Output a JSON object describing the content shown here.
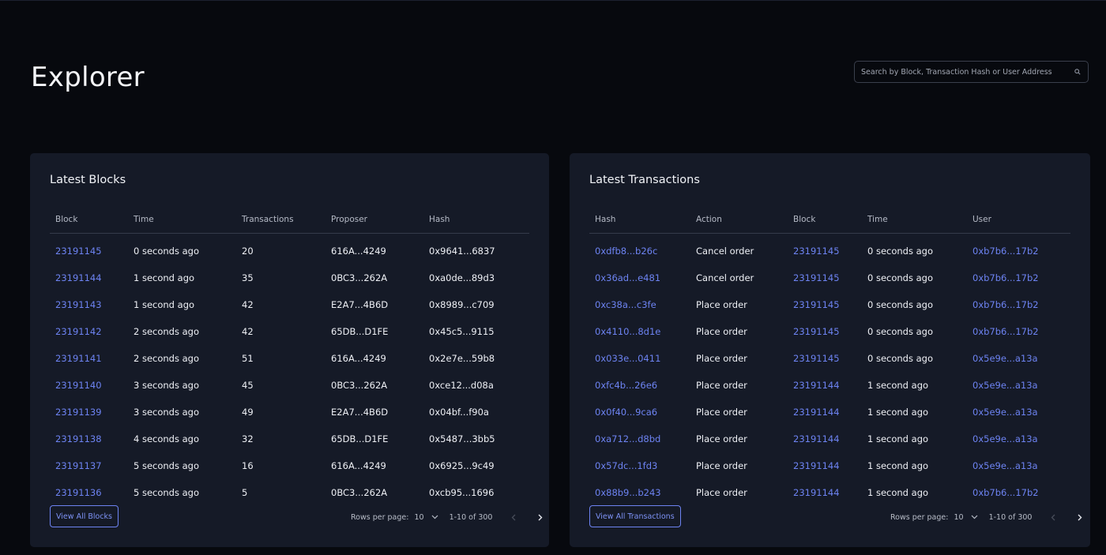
{
  "header": {
    "title": "Explorer",
    "search_placeholder": "Search by Block, Transaction Hash or User Address",
    "search_icon": "search-icon"
  },
  "colors": {
    "background": "#07090e",
    "panel": "#151a27",
    "accent_link": "#6d83f2",
    "text": "#eef0f5",
    "muted": "#b5bac6"
  },
  "blocks_panel": {
    "title": "Latest Blocks",
    "columns": [
      "Block",
      "Time",
      "Transactions",
      "Proposer",
      "Hash"
    ],
    "rows": [
      [
        "23191145",
        "0 seconds ago",
        "20",
        "616A...4249",
        "0x9641...6837"
      ],
      [
        "23191144",
        "1 second ago",
        "35",
        "0BC3...262A",
        "0xa0de...89d3"
      ],
      [
        "23191143",
        "1 second ago",
        "42",
        "E2A7...4B6D",
        "0x8989...c709"
      ],
      [
        "23191142",
        "2 seconds ago",
        "42",
        "65DB...D1FE",
        "0x45c5...9115"
      ],
      [
        "23191141",
        "2 seconds ago",
        "51",
        "616A...4249",
        "0x2e7e...59b8"
      ],
      [
        "23191140",
        "3 seconds ago",
        "45",
        "0BC3...262A",
        "0xce12...d08a"
      ],
      [
        "23191139",
        "3 seconds ago",
        "49",
        "E2A7...4B6D",
        "0x04bf...f90a"
      ],
      [
        "23191138",
        "4 seconds ago",
        "32",
        "65DB...D1FE",
        "0x5487...3bb5"
      ],
      [
        "23191137",
        "5 seconds ago",
        "16",
        "616A...4249",
        "0x6925...9c49"
      ],
      [
        "23191136",
        "5 seconds ago",
        "5",
        "0BC3...262A",
        "0xcb95...1696"
      ]
    ],
    "view_all_label": "View All Blocks",
    "pager": {
      "rows_per_page_label": "Rows per page:",
      "rows_per_page_value": "10",
      "range_label": "1-10 of 300"
    }
  },
  "transactions_panel": {
    "title": "Latest Transactions",
    "columns": [
      "Hash",
      "Action",
      "Block",
      "Time",
      "User"
    ],
    "rows": [
      [
        "0xdfb8...b26c",
        "Cancel order",
        "23191145",
        "0 seconds ago",
        "0xb7b6...17b2"
      ],
      [
        "0x36ad...e481",
        "Cancel order",
        "23191145",
        "0 seconds ago",
        "0xb7b6...17b2"
      ],
      [
        "0xc38a...c3fe",
        "Place order",
        "23191145",
        "0 seconds ago",
        "0xb7b6...17b2"
      ],
      [
        "0x4110...8d1e",
        "Place order",
        "23191145",
        "0 seconds ago",
        "0xb7b6...17b2"
      ],
      [
        "0x033e...0411",
        "Place order",
        "23191145",
        "0 seconds ago",
        "0x5e9e...a13a"
      ],
      [
        "0xfc4b...26e6",
        "Place order",
        "23191144",
        "1 second ago",
        "0x5e9e...a13a"
      ],
      [
        "0x0f40...9ca6",
        "Place order",
        "23191144",
        "1 second ago",
        "0x5e9e...a13a"
      ],
      [
        "0xa712...d8bd",
        "Place order",
        "23191144",
        "1 second ago",
        "0x5e9e...a13a"
      ],
      [
        "0x57dc...1fd3",
        "Place order",
        "23191144",
        "1 second ago",
        "0x5e9e...a13a"
      ],
      [
        "0x88b9...b243",
        "Place order",
        "23191144",
        "1 second ago",
        "0xb7b6...17b2"
      ]
    ],
    "view_all_label": "View All Transactions",
    "pager": {
      "rows_per_page_label": "Rows per page:",
      "rows_per_page_value": "10",
      "range_label": "1-10 of 300"
    }
  }
}
